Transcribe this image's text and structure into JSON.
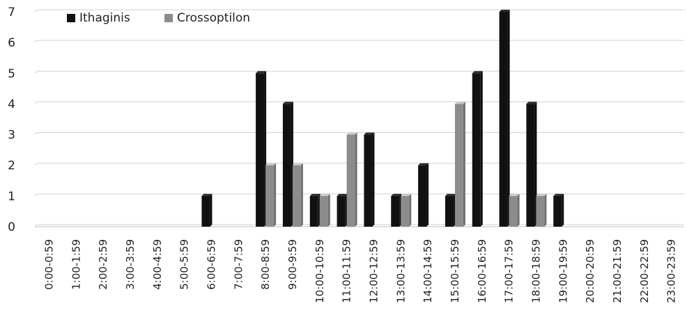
{
  "chart_data": {
    "type": "bar",
    "title": "",
    "xlabel": "",
    "ylabel": "",
    "ylim": [
      0,
      7
    ],
    "yticks": [
      0,
      1,
      2,
      3,
      4,
      5,
      6,
      7
    ],
    "grid": true,
    "legend_position": "top-left",
    "categories": [
      "0:00-0:59",
      "1:00-1:59",
      "2:00-2:59",
      "3:00-3:59",
      "4:00-4:59",
      "5:00-5:59",
      "6:00-6:59",
      "7:00-7:59",
      "8:00-8:59",
      "9:00-9:59",
      "10:00-10:59",
      "11:00-11:59",
      "12:00-12:59",
      "13:00-13:59",
      "14:00-14:59",
      "15:00-15:59",
      "16:00-16:59",
      "17:00-17:59",
      "18:00-18:59",
      "19:00-19:59",
      "20:00-20:59",
      "21:00-21:59",
      "22:00-22:59",
      "23:00-23:59"
    ],
    "series": [
      {
        "name": "Ithaginis",
        "color": "#111111",
        "values": [
          0,
          0,
          0,
          0,
          0,
          0,
          1,
          0,
          5,
          4,
          1,
          1,
          3,
          1,
          2,
          1,
          5,
          7,
          4,
          1,
          0,
          0,
          0,
          0
        ]
      },
      {
        "name": "Crossoptilon",
        "color": "#8c8c8c",
        "values": [
          0,
          0,
          0,
          0,
          0,
          0,
          0,
          0,
          2,
          2,
          1,
          3,
          0,
          1,
          0,
          4,
          0,
          1,
          1,
          0,
          0,
          0,
          0,
          0
        ]
      }
    ]
  }
}
